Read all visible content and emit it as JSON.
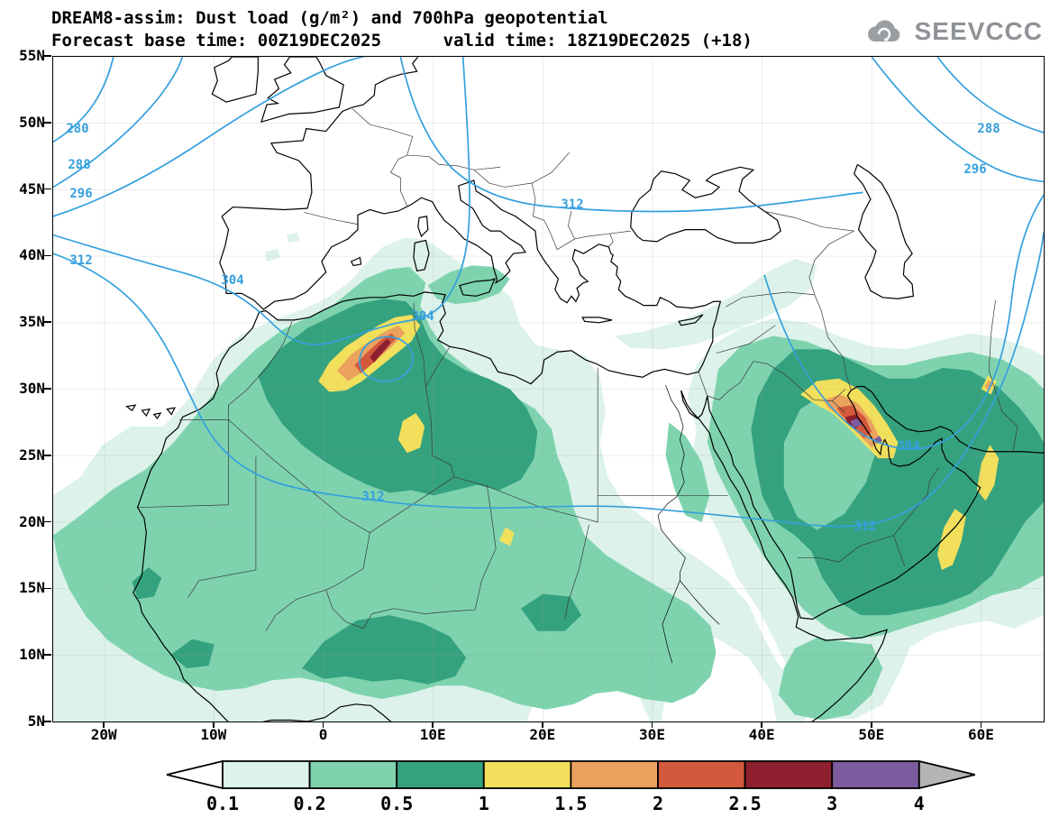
{
  "header": {
    "title_line1": "DREAM8-assim: Dust load (g/m²) and 700hPa geopotential",
    "title_line2": "Forecast base time: 00Z19DEC2025      valid time: 18Z19DEC2025 (+18)",
    "logo_text": "SEEVCCC"
  },
  "chart_data": {
    "type": "heatmap",
    "title": "DREAM8-assim: Dust load (g/m²) and 700hPa geopotential",
    "model": "DREAM8-assim",
    "variable": "Dust load",
    "variable_units": "g/m²",
    "overlay_variable": "700hPa geopotential",
    "forecast_base_time": "00Z19DEC2025",
    "valid_time": "18Z19DEC2025",
    "forecast_step": "+18",
    "x_axis": {
      "ticks": [
        "20W",
        "10W",
        "0",
        "10E",
        "20E",
        "30E",
        "40E",
        "50E",
        "60E"
      ],
      "approx_range_deg_lon": [
        -25,
        66
      ]
    },
    "y_axis": {
      "ticks": [
        "55N",
        "50N",
        "45N",
        "40N",
        "35N",
        "30N",
        "25N",
        "20N",
        "15N",
        "10N",
        "5N"
      ],
      "approx_range_deg_lat": [
        5,
        55
      ]
    },
    "colorbar": {
      "labels": [
        "0.1",
        "0.2",
        "0.5",
        "1",
        "1.5",
        "2",
        "2.5",
        "3",
        "4"
      ],
      "boundaries_g_m2": [
        0.1,
        0.2,
        0.5,
        1,
        1.5,
        2,
        2.5,
        3,
        4
      ],
      "segment_colors": [
        "#ffffff",
        "#dcf2ea",
        "#7ed3ae",
        "#35a27f",
        "#f2e05c",
        "#eba25e",
        "#d3583c",
        "#8e1f2f",
        "#7c5b9e",
        "#b5b5b5"
      ]
    },
    "contour_color": "#35a0dd",
    "geopotential_contour_levels_labelled": [
      280,
      288,
      296,
      304,
      312
    ],
    "contour_labels": [
      "280",
      "288",
      "296",
      "312",
      "304",
      "304",
      "312",
      "312",
      "312",
      "304",
      "296",
      "288"
    ],
    "dust_maxima_estimated": [
      {
        "region": "northeastern Algeria (about 2E-8E, 31N-35N)",
        "peak_dust_load_g_m2": "2.5-3"
      },
      {
        "region": "Persian Gulf / eastern Arabia (about 47E-50E, 26N-28N)",
        "peak_dust_load_g_m2": "3-4"
      },
      {
        "region": "southern Algeria (about 7E-9E, 25N-28N)",
        "peak_dust_load_g_m2": "1-1.5"
      },
      {
        "region": "Oman / eastern Arabian coast (about 56E-61E, 16N-26N)",
        "peak_dust_load_g_m2": "1-1.5"
      }
    ]
  }
}
